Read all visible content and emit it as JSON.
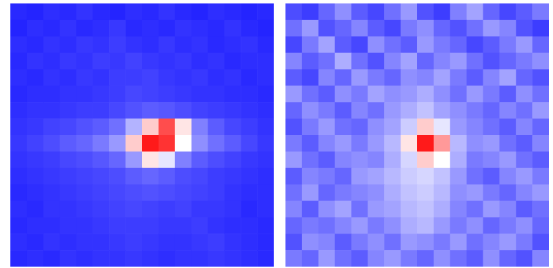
{
  "chart_data": [
    {
      "type": "heatmap",
      "tick_labels": false,
      "xlim": [
        0,
        16
      ],
      "ylim": [
        0,
        16
      ],
      "zlim": [
        0,
        1
      ],
      "crosshair": [
        8,
        8
      ],
      "cells": [
        [
          0.08,
          0.07,
          0.09,
          0.08,
          0.1,
          0.08,
          0.07,
          0.09,
          0.08,
          0.1,
          0.08,
          0.07,
          0.09,
          0.08,
          0.07,
          0.08
        ],
        [
          0.07,
          0.09,
          0.08,
          0.1,
          0.08,
          0.09,
          0.11,
          0.08,
          0.09,
          0.08,
          0.1,
          0.09,
          0.08,
          0.1,
          0.08,
          0.07
        ],
        [
          0.09,
          0.08,
          0.1,
          0.09,
          0.11,
          0.1,
          0.12,
          0.1,
          0.09,
          0.11,
          0.09,
          0.1,
          0.08,
          0.09,
          0.1,
          0.08
        ],
        [
          0.08,
          0.1,
          0.09,
          0.11,
          0.1,
          0.12,
          0.11,
          0.13,
          0.11,
          0.1,
          0.11,
          0.09,
          0.1,
          0.08,
          0.09,
          0.09
        ],
        [
          0.09,
          0.08,
          0.1,
          0.09,
          0.11,
          0.1,
          0.12,
          0.12,
          0.13,
          0.11,
          0.1,
          0.11,
          0.09,
          0.1,
          0.08,
          0.09
        ],
        [
          0.08,
          0.09,
          0.09,
          0.1,
          0.1,
          0.11,
          0.12,
          0.14,
          0.13,
          0.12,
          0.11,
          0.1,
          0.1,
          0.09,
          0.09,
          0.08
        ],
        [
          0.09,
          0.1,
          0.1,
          0.11,
          0.12,
          0.12,
          0.14,
          0.16,
          0.18,
          0.17,
          0.15,
          0.13,
          0.12,
          0.11,
          0.1,
          0.09
        ],
        [
          0.1,
          0.11,
          0.13,
          0.14,
          0.16,
          0.18,
          0.22,
          0.35,
          0.6,
          0.85,
          0.55,
          0.25,
          0.18,
          0.14,
          0.12,
          0.1
        ],
        [
          0.11,
          0.13,
          0.15,
          0.18,
          0.2,
          0.24,
          0.3,
          0.6,
          0.95,
          0.9,
          0.5,
          0.28,
          0.22,
          0.18,
          0.14,
          0.11
        ],
        [
          0.1,
          0.11,
          0.12,
          0.14,
          0.15,
          0.17,
          0.2,
          0.3,
          0.55,
          0.45,
          0.25,
          0.18,
          0.15,
          0.13,
          0.11,
          0.1
        ],
        [
          0.09,
          0.1,
          0.11,
          0.12,
          0.13,
          0.14,
          0.15,
          0.18,
          0.2,
          0.18,
          0.15,
          0.14,
          0.12,
          0.11,
          0.1,
          0.09
        ],
        [
          0.08,
          0.09,
          0.1,
          0.11,
          0.12,
          0.13,
          0.14,
          0.15,
          0.16,
          0.15,
          0.14,
          0.13,
          0.12,
          0.1,
          0.09,
          0.09
        ],
        [
          0.09,
          0.08,
          0.1,
          0.1,
          0.11,
          0.12,
          0.13,
          0.14,
          0.13,
          0.12,
          0.13,
          0.11,
          0.11,
          0.1,
          0.08,
          0.09
        ],
        [
          0.08,
          0.09,
          0.09,
          0.1,
          0.1,
          0.11,
          0.12,
          0.12,
          0.12,
          0.11,
          0.11,
          0.12,
          0.1,
          0.09,
          0.09,
          0.08
        ],
        [
          0.09,
          0.08,
          0.1,
          0.09,
          0.1,
          0.1,
          0.11,
          0.12,
          0.11,
          0.1,
          0.1,
          0.11,
          0.12,
          0.1,
          0.09,
          0.08
        ],
        [
          0.08,
          0.09,
          0.08,
          0.1,
          0.09,
          0.1,
          0.1,
          0.11,
          0.1,
          0.09,
          0.1,
          0.1,
          0.11,
          0.1,
          0.09,
          0.08
        ]
      ]
    },
    {
      "type": "heatmap",
      "tick_labels": false,
      "xlim": [
        0,
        16
      ],
      "ylim": [
        0,
        16
      ],
      "zlim": [
        0,
        1
      ],
      "crosshair": [
        8,
        8
      ],
      "cells": [
        [
          0.15,
          0.12,
          0.2,
          0.28,
          0.18,
          0.14,
          0.22,
          0.3,
          0.16,
          0.12,
          0.25,
          0.32,
          0.2,
          0.14,
          0.18,
          0.24
        ],
        [
          0.22,
          0.3,
          0.16,
          0.2,
          0.26,
          0.18,
          0.14,
          0.24,
          0.28,
          0.2,
          0.16,
          0.22,
          0.3,
          0.26,
          0.16,
          0.12
        ],
        [
          0.14,
          0.24,
          0.32,
          0.18,
          0.14,
          0.28,
          0.22,
          0.18,
          0.3,
          0.24,
          0.2,
          0.14,
          0.18,
          0.24,
          0.3,
          0.2
        ],
        [
          0.26,
          0.18,
          0.22,
          0.34,
          0.22,
          0.16,
          0.26,
          0.32,
          0.2,
          0.26,
          0.3,
          0.22,
          0.16,
          0.2,
          0.24,
          0.28
        ],
        [
          0.18,
          0.14,
          0.26,
          0.2,
          0.3,
          0.24,
          0.2,
          0.28,
          0.26,
          0.32,
          0.24,
          0.18,
          0.26,
          0.32,
          0.2,
          0.16
        ],
        [
          0.3,
          0.22,
          0.18,
          0.28,
          0.24,
          0.32,
          0.28,
          0.3,
          0.34,
          0.28,
          0.22,
          0.3,
          0.24,
          0.18,
          0.28,
          0.22
        ],
        [
          0.2,
          0.28,
          0.24,
          0.18,
          0.26,
          0.22,
          0.3,
          0.34,
          0.38,
          0.32,
          0.28,
          0.24,
          0.2,
          0.26,
          0.22,
          0.3
        ],
        [
          0.16,
          0.24,
          0.3,
          0.22,
          0.2,
          0.28,
          0.32,
          0.4,
          0.6,
          0.45,
          0.3,
          0.26,
          0.22,
          0.18,
          0.26,
          0.2
        ],
        [
          0.24,
          0.18,
          0.26,
          0.3,
          0.24,
          0.3,
          0.36,
          0.55,
          0.95,
          0.7,
          0.36,
          0.28,
          0.3,
          0.22,
          0.18,
          0.26
        ],
        [
          0.3,
          0.22,
          0.18,
          0.26,
          0.28,
          0.26,
          0.34,
          0.42,
          0.6,
          0.5,
          0.34,
          0.24,
          0.26,
          0.3,
          0.22,
          0.18
        ],
        [
          0.18,
          0.26,
          0.24,
          0.2,
          0.3,
          0.32,
          0.36,
          0.4,
          0.42,
          0.38,
          0.3,
          0.22,
          0.18,
          0.26,
          0.3,
          0.24
        ],
        [
          0.22,
          0.3,
          0.2,
          0.24,
          0.26,
          0.28,
          0.34,
          0.38,
          0.4,
          0.36,
          0.28,
          0.3,
          0.24,
          0.2,
          0.26,
          0.3
        ],
        [
          0.26,
          0.18,
          0.28,
          0.32,
          0.22,
          0.3,
          0.32,
          0.36,
          0.38,
          0.34,
          0.26,
          0.22,
          0.3,
          0.26,
          0.18,
          0.22
        ],
        [
          0.2,
          0.24,
          0.22,
          0.26,
          0.3,
          0.24,
          0.28,
          0.34,
          0.36,
          0.3,
          0.24,
          0.28,
          0.2,
          0.24,
          0.28,
          0.2
        ],
        [
          0.16,
          0.28,
          0.26,
          0.18,
          0.24,
          0.28,
          0.22,
          0.3,
          0.28,
          0.24,
          0.3,
          0.22,
          0.26,
          0.3,
          0.24,
          0.16
        ],
        [
          0.24,
          0.2,
          0.3,
          0.22,
          0.18,
          0.26,
          0.3,
          0.24,
          0.2,
          0.28,
          0.22,
          0.18,
          0.28,
          0.2,
          0.16,
          0.26
        ]
      ]
    }
  ]
}
